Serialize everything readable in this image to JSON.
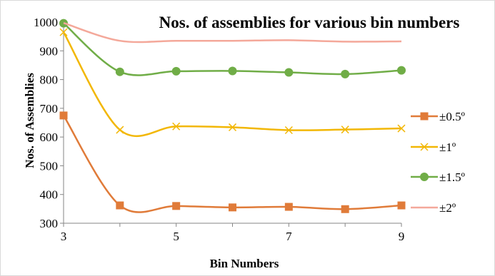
{
  "chart_data": {
    "type": "line",
    "title": "Nos. of assemblies for various bin numbers",
    "xlabel": "Bin Numbers",
    "ylabel": "Nos. of Assemblies",
    "x": [
      3,
      4,
      5,
      6,
      7,
      8,
      9
    ],
    "xlim": [
      3,
      9
    ],
    "xticks": [
      "3",
      "5",
      "7",
      "9"
    ],
    "ylim": [
      300,
      1000
    ],
    "yticks": [
      "300",
      "400",
      "500",
      "600",
      "700",
      "800",
      "900",
      "1000"
    ],
    "grid": false,
    "legend_position": "right",
    "smooth": true,
    "series": [
      {
        "name": "±0.5º",
        "color": "#e07b39",
        "marker": "square",
        "values": [
          675,
          362,
          360,
          355,
          357,
          349,
          362
        ]
      },
      {
        "name": "±1º",
        "color": "#f2b705",
        "marker": "x",
        "values": [
          965,
          625,
          637,
          634,
          624,
          626,
          630
        ]
      },
      {
        "name": "±1.5º",
        "color": "#70ad47",
        "marker": "circle",
        "values": [
          996,
          827,
          829,
          830,
          825,
          819,
          832
        ]
      },
      {
        "name": "±2º",
        "color": "#f4a89a",
        "marker": "none",
        "values": [
          997,
          935,
          935,
          935,
          937,
          932,
          933
        ]
      }
    ]
  }
}
